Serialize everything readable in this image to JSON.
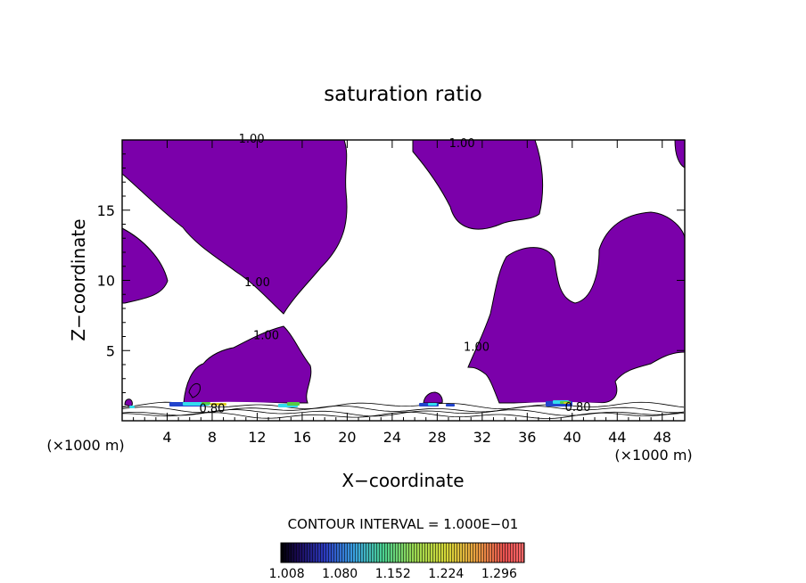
{
  "chart_data": {
    "type": "heatmap",
    "title": "saturation ratio",
    "xlabel": "X−coordinate",
    "ylabel": "Z−coordinate",
    "x_unit_label_left": "(×1000 m)",
    "x_unit_label_right": "(×1000 m)",
    "xlim": [
      0,
      50
    ],
    "ylim": [
      0,
      20
    ],
    "x_ticks": [
      4,
      8,
      12,
      16,
      20,
      24,
      28,
      32,
      36,
      40,
      44,
      48
    ],
    "x_tick_labels": [
      "4",
      "8",
      "12",
      "16",
      "20",
      "24",
      "28",
      "32",
      "36",
      "40",
      "44",
      "48"
    ],
    "y_ticks": [
      5,
      10,
      15
    ],
    "y_tick_labels": [
      "5",
      "10",
      "15"
    ],
    "contour_interval_text": "CONTOUR INTERVAL = 1.000E−01",
    "contour_labels": [
      {
        "text": "1.00",
        "x": 11.5,
        "y": 19.8
      },
      {
        "text": "1.00",
        "x": 30.2,
        "y": 19.5
      },
      {
        "text": "1.00",
        "x": 12.0,
        "y": 9.6
      },
      {
        "text": "1.00",
        "x": 12.8,
        "y": 5.8
      },
      {
        "text": "1.00",
        "x": 31.5,
        "y": 5.0
      },
      {
        "text": "0.80",
        "x": 8.0,
        "y": 0.6
      },
      {
        "text": "0.80",
        "x": 40.5,
        "y": 0.7
      }
    ],
    "colorbar": {
      "ticks": [
        "1.008",
        "1.080",
        "1.152",
        "1.224",
        "1.296"
      ],
      "min": 1.0,
      "max": 1.33
    },
    "fill_color": "#7b00aa",
    "colors": {
      "fill": "#7b00aa",
      "contour": "#000000",
      "low_cyan": "#33ddee",
      "low_green": "#55cc44",
      "low_yellow": "#ddcc22",
      "low_blue": "#2244cc"
    }
  }
}
